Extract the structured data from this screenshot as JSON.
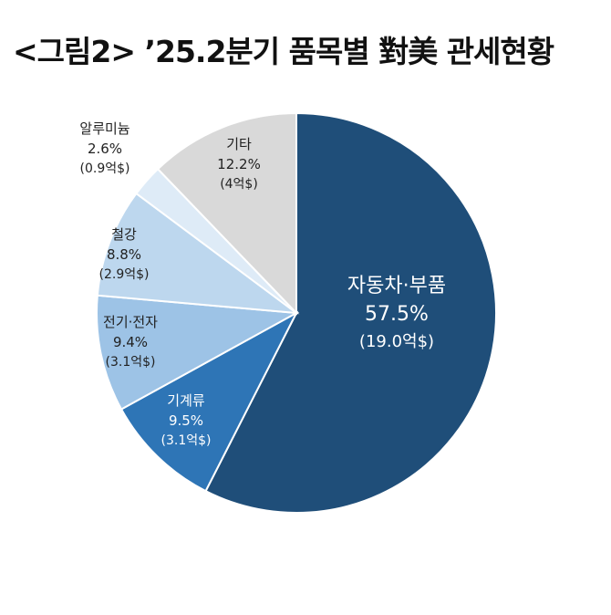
{
  "title": "<그림2> ’25.2분기 품목별 對美 관세현황",
  "chart_data": {
    "type": "pie",
    "title": "<그림2> ’25.2분기 품목별 對美 관세현황",
    "slices": [
      {
        "label": "자동차·부품",
        "percent": 57.5,
        "percent_text": "57.5%",
        "amount_text": "(19.0억$)",
        "color": "#1f4e79"
      },
      {
        "label": "기계류",
        "percent": 9.5,
        "percent_text": "9.5%",
        "amount_text": "(3.1억$)",
        "color": "#2e75b6"
      },
      {
        "label": "전기·전자",
        "percent": 9.4,
        "percent_text": "9.4%",
        "amount_text": "(3.1억$)",
        "color": "#9dc3e6"
      },
      {
        "label": "철강",
        "percent": 8.8,
        "percent_text": "8.8%",
        "amount_text": "(2.9억$)",
        "color": "#bdd7ee"
      },
      {
        "label": "알루미늄",
        "percent": 2.6,
        "percent_text": "2.6%",
        "amount_text": "(0.9억$)",
        "color": "#deebf7"
      },
      {
        "label": "기타",
        "percent": 12.2,
        "percent_text": "12.2%",
        "amount_text": "(4억$)",
        "color": "#d9d9d9"
      }
    ],
    "start": "12 o'clock",
    "direction": "clockwise",
    "legend": "none"
  }
}
